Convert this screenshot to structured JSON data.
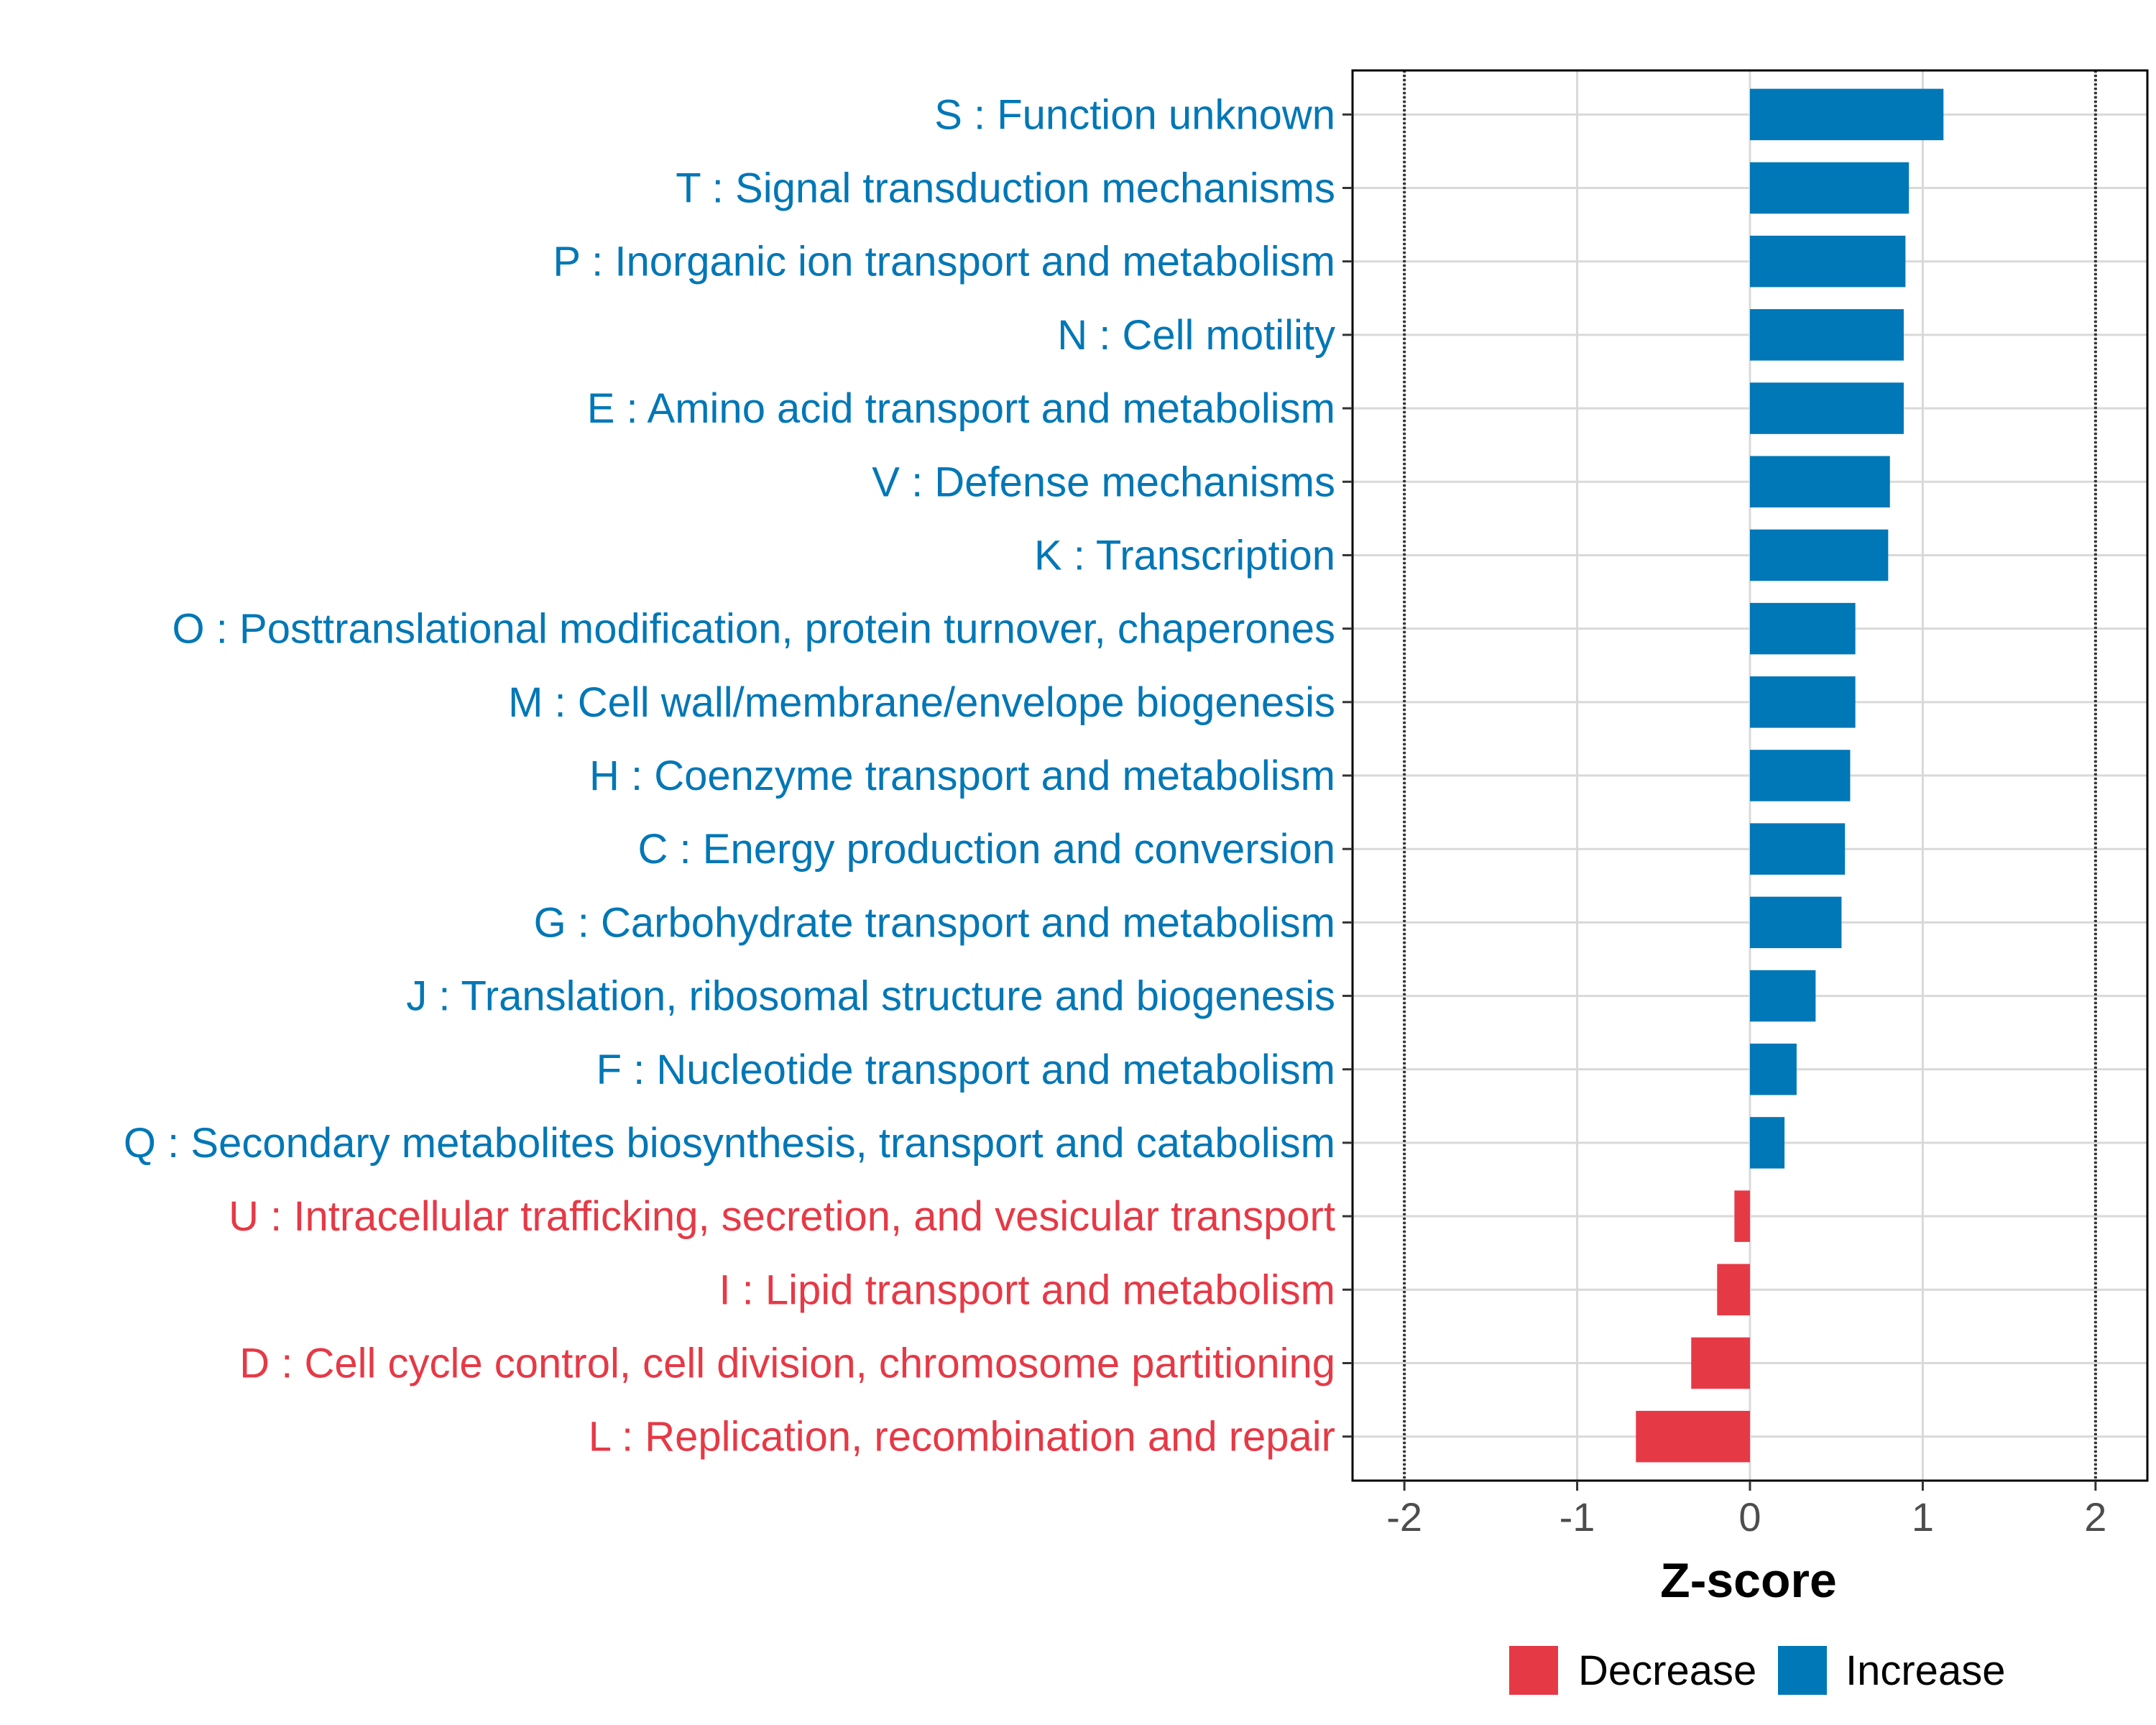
{
  "chart_data": {
    "type": "bar",
    "orientation": "horizontal",
    "xlabel": "Z-score",
    "xlim": [
      -2.3,
      2.3
    ],
    "xticks": [
      -2,
      -1,
      0,
      1,
      2
    ],
    "xtick_labels": [
      "-2",
      "-1",
      "0",
      "1",
      "2"
    ],
    "reference_lines": [
      -2,
      2
    ],
    "grid": true,
    "categories": [
      "S : Function unknown",
      "T : Signal transduction mechanisms",
      "P : Inorganic ion transport and metabolism",
      "N : Cell motility",
      "E : Amino acid transport and metabolism",
      "V : Defense mechanisms",
      "K : Transcription",
      "O : Posttranslational modification, protein turnover, chaperones",
      "M : Cell wall/membrane/envelope biogenesis",
      "H : Coenzyme transport and metabolism",
      "C : Energy production and conversion",
      "G : Carbohydrate transport and metabolism",
      "J : Translation, ribosomal structure and biogenesis",
      "F : Nucleotide transport and metabolism",
      "Q : Secondary metabolites biosynthesis, transport and catabolism",
      "U : Intracellular trafficking, secretion, and vesicular transport",
      "I : Lipid transport and metabolism",
      "D : Cell cycle control, cell division, chromosome partitioning",
      "L : Replication, recombination and repair"
    ],
    "values": [
      1.12,
      0.92,
      0.9,
      0.89,
      0.89,
      0.81,
      0.8,
      0.61,
      0.61,
      0.58,
      0.55,
      0.53,
      0.38,
      0.27,
      0.2,
      -0.09,
      -0.19,
      -0.34,
      -0.66
    ],
    "groups": [
      "Increase",
      "Increase",
      "Increase",
      "Increase",
      "Increase",
      "Increase",
      "Increase",
      "Increase",
      "Increase",
      "Increase",
      "Increase",
      "Increase",
      "Increase",
      "Increase",
      "Increase",
      "Decrease",
      "Decrease",
      "Decrease",
      "Decrease"
    ],
    "legend": {
      "position": "bottom",
      "entries": [
        {
          "label": "Decrease",
          "color": "#E63946"
        },
        {
          "label": "Increase",
          "color": "#0077B6"
        }
      ]
    },
    "colors": {
      "Increase": "#0077B6",
      "Decrease": "#E63946",
      "grid": "#d9d9d9",
      "axis": "#000000"
    }
  }
}
